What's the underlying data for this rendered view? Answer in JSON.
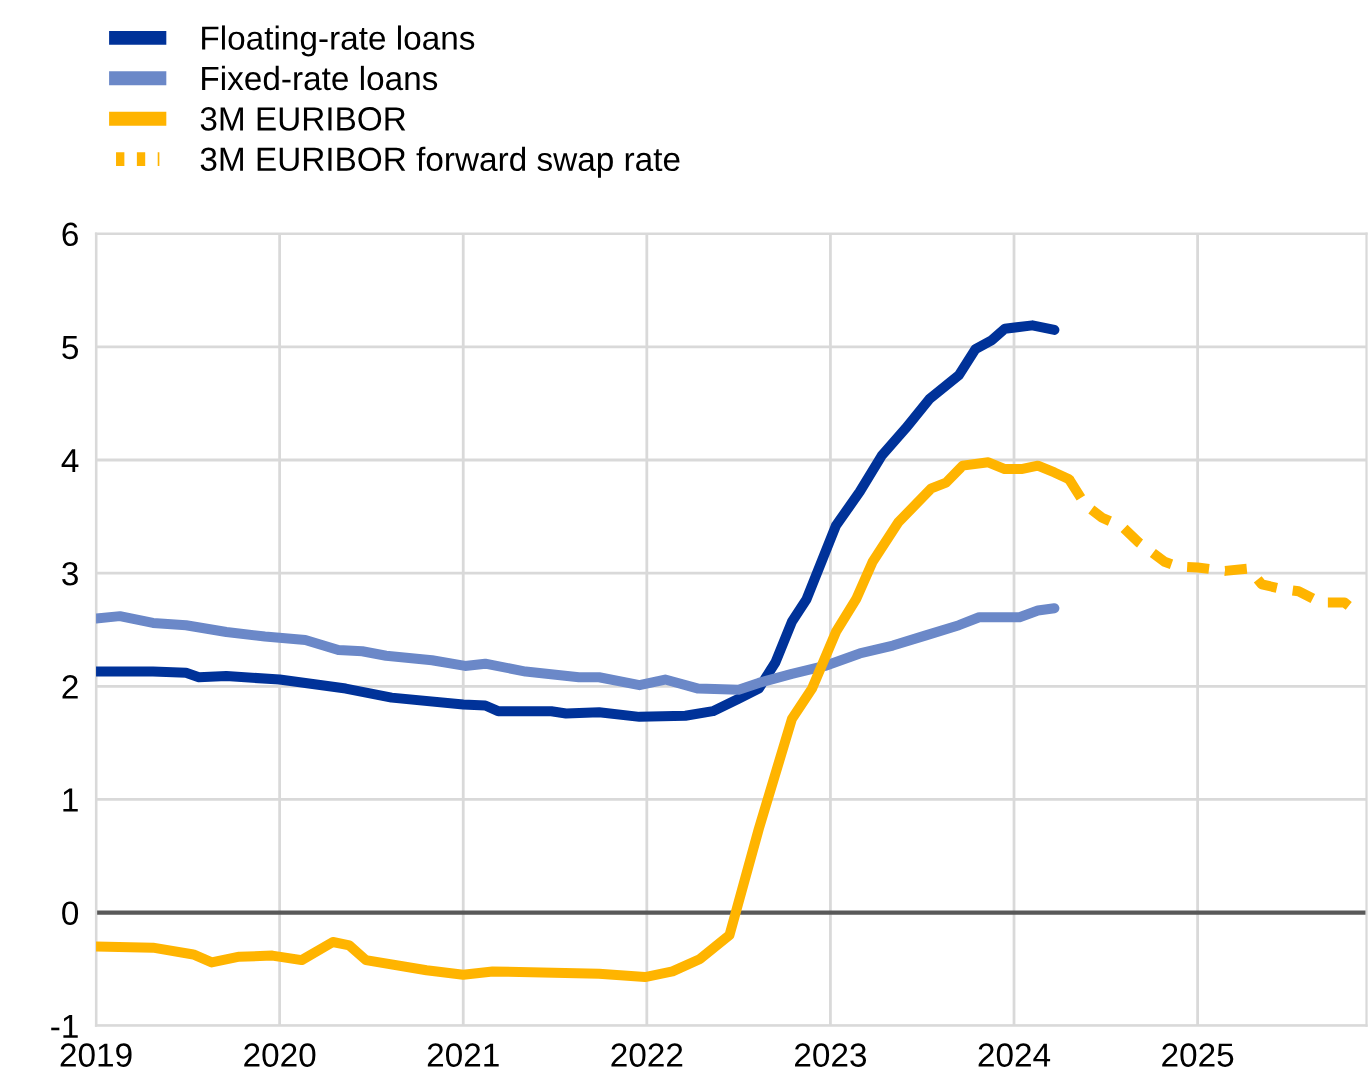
{
  "chart_data": {
    "type": "line",
    "xlim": [
      2019,
      2025.92
    ],
    "xticks": [
      {
        "value": 2019,
        "label": "2019"
      },
      {
        "value": 2020,
        "label": "2020"
      },
      {
        "value": 2021,
        "label": "2021"
      },
      {
        "value": 2022,
        "label": "2022"
      },
      {
        "value": 2023,
        "label": "2023"
      },
      {
        "value": 2024,
        "label": "2024"
      },
      {
        "value": 2025,
        "label": "2025"
      }
    ],
    "ylim": [
      -1,
      6
    ],
    "yticks": [
      -1,
      0,
      1,
      2,
      3,
      4,
      5,
      6
    ],
    "grid": true,
    "legend": "top left",
    "ref_lines": [
      {
        "axis": "y",
        "value": 0,
        "color": "#595959"
      }
    ],
    "series": [
      {
        "name": "Floating-rate loans",
        "color": "#003299",
        "line_style": "solid",
        "x": [
          2019.0,
          2019.31,
          2019.49,
          2019.56,
          2019.71,
          2020.0,
          2020.36,
          2020.61,
          2021.0,
          2021.12,
          2021.19,
          2021.48,
          2021.56,
          2021.74,
          2021.96,
          2022.21,
          2022.36,
          2022.5,
          2022.61,
          2022.7,
          2022.79,
          2022.87,
          2023.03,
          2023.16,
          2023.28,
          2023.41,
          2023.54,
          2023.7,
          2023.79,
          2023.88,
          2023.95,
          2024.1,
          2024.22
        ],
        "values": [
          2.13,
          2.13,
          2.12,
          2.08,
          2.09,
          2.06,
          1.98,
          1.9,
          1.84,
          1.83,
          1.78,
          1.78,
          1.76,
          1.77,
          1.73,
          1.74,
          1.78,
          1.89,
          1.98,
          2.21,
          2.57,
          2.77,
          3.42,
          3.72,
          4.04,
          4.28,
          4.54,
          4.75,
          4.98,
          5.06,
          5.16,
          5.19,
          5.15
        ]
      },
      {
        "name": "Fixed-rate loans",
        "color": "#6b88c8",
        "line_style": "solid",
        "x": [
          2019.0,
          2019.13,
          2019.31,
          2019.49,
          2019.71,
          2019.92,
          2020.14,
          2020.32,
          2020.45,
          2020.58,
          2020.83,
          2021.01,
          2021.12,
          2021.34,
          2021.63,
          2021.74,
          2021.96,
          2022.1,
          2022.28,
          2022.5,
          2022.61,
          2022.79,
          2022.97,
          2023.16,
          2023.34,
          2023.52,
          2023.7,
          2023.81,
          2024.03,
          2024.13,
          2024.22
        ],
        "values": [
          2.6,
          2.62,
          2.56,
          2.54,
          2.48,
          2.44,
          2.41,
          2.32,
          2.31,
          2.27,
          2.23,
          2.18,
          2.2,
          2.13,
          2.08,
          2.08,
          2.01,
          2.06,
          1.98,
          1.97,
          2.03,
          2.11,
          2.18,
          2.29,
          2.36,
          2.45,
          2.54,
          2.61,
          2.61,
          2.67,
          2.69
        ]
      },
      {
        "name": "3M EURIBOR",
        "color": "#ffb400",
        "line_style": "solid",
        "x": [
          2019.0,
          2019.31,
          2019.53,
          2019.63,
          2019.78,
          2019.96,
          2020.12,
          2020.29,
          2020.38,
          2020.47,
          2020.8,
          2021.0,
          2021.16,
          2021.74,
          2021.99,
          2022.14,
          2022.29,
          2022.45,
          2022.61,
          2022.79,
          2022.9,
          2023.03,
          2023.14,
          2023.23,
          2023.37,
          2023.55,
          2023.63,
          2023.72,
          2023.86,
          2023.95,
          2024.04,
          2024.13,
          2024.22,
          2024.3
        ],
        "values": [
          -0.3,
          -0.31,
          -0.37,
          -0.44,
          -0.39,
          -0.38,
          -0.42,
          -0.26,
          -0.29,
          -0.42,
          -0.51,
          -0.55,
          -0.52,
          -0.54,
          -0.57,
          -0.52,
          -0.41,
          -0.2,
          0.74,
          1.71,
          1.98,
          2.48,
          2.77,
          3.1,
          3.45,
          3.75,
          3.8,
          3.95,
          3.98,
          3.92,
          3.92,
          3.95,
          3.89,
          3.83
        ]
      },
      {
        "name": "3M EURIBOR forward swap rate",
        "color": "#ffb400",
        "line_style": "dashed",
        "x": [
          2024.3,
          2024.39,
          2024.48,
          2024.59,
          2024.68,
          2024.82,
          2024.89,
          2025.0,
          2025.15,
          2025.28,
          2025.35,
          2025.46,
          2025.55,
          2025.67,
          2025.8,
          2025.84
        ],
        "values": [
          3.83,
          3.6,
          3.49,
          3.41,
          3.27,
          3.1,
          3.06,
          3.05,
          3.02,
          3.04,
          2.9,
          2.86,
          2.84,
          2.74,
          2.74,
          2.69
        ]
      }
    ]
  }
}
